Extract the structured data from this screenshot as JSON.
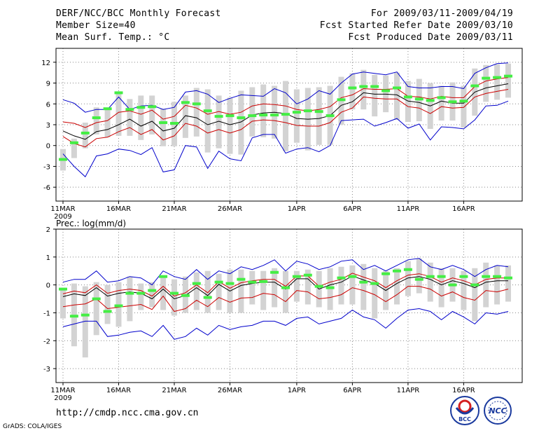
{
  "header": {
    "title": "DERF/NCC/BCC Monthly Forecast",
    "member_size": "Member Size=40",
    "variable1": "Mean Surf. Temp.: °C",
    "period": "For 2009/03/11-2009/04/19",
    "refer_date": "Fcst Started Refer Date 2009/03/10",
    "produced_date": "Fcst Produced Date 2009/03/11"
  },
  "panel2_label": "Prec.: log(mm/d)",
  "footer": {
    "url": "http://cmdp.ncc.cma.gov.cn",
    "credit": "GrADS: COLA/IGES"
  },
  "logos": {
    "bcc": "BCC",
    "ncc": "NCC"
  },
  "colors": {
    "mean": "#000000",
    "inner": "#cc0000",
    "outer": "#0000cc",
    "obs": "#44ee44",
    "spread": "#d3d3d3"
  },
  "chart_data": [
    {
      "type": "line",
      "title": "Mean Surf. Temp.: °C",
      "x_ticks": [
        "11MAR",
        "16MAR",
        "21MAR",
        "26MAR",
        "1APR",
        "6APR",
        "11APR",
        "16APR"
      ],
      "x_tick_index": [
        0,
        5,
        10,
        15,
        21,
        26,
        31,
        36
      ],
      "year_label": "2009",
      "ylim": [
        -8,
        14
      ],
      "y_ticks": [
        12,
        9,
        6,
        3,
        0,
        -3,
        -6
      ],
      "series": [
        {
          "name": "mean",
          "values": [
            2.1,
            1.4,
            0.9,
            2.0,
            2.3,
            3.0,
            3.8,
            2.8,
            3.5,
            2.1,
            2.5,
            4.3,
            4.0,
            3.0,
            3.5,
            3.0,
            3.4,
            4.4,
            4.7,
            4.8,
            4.6,
            3.9,
            3.8,
            3.9,
            4.3,
            5.8,
            6.3,
            7.6,
            7.4,
            7.4,
            7.3,
            6.4,
            6.2,
            5.7,
            6.4,
            6.1,
            6.1,
            7.7,
            8.3,
            8.6,
            8.9
          ]
        },
        {
          "name": "upper_red",
          "values": [
            3.4,
            3.2,
            2.6,
            3.3,
            3.6,
            4.8,
            5.0,
            4.5,
            5.1,
            3.8,
            4.2,
            5.8,
            5.4,
            4.5,
            4.9,
            4.5,
            4.8,
            5.7,
            6.0,
            5.9,
            5.7,
            5.2,
            5.0,
            5.2,
            5.6,
            6.9,
            7.3,
            8.2,
            8.1,
            8.1,
            8.2,
            7.1,
            7.0,
            6.7,
            7.1,
            6.9,
            6.9,
            8.5,
            9.3,
            9.6,
            9.8
          ]
        },
        {
          "name": "lower_red",
          "values": [
            1.3,
            0.3,
            -0.2,
            1.0,
            1.2,
            2.0,
            2.6,
            1.6,
            2.3,
            0.8,
            1.4,
            3.2,
            2.8,
            1.8,
            2.3,
            1.8,
            2.3,
            3.5,
            3.7,
            3.6,
            3.3,
            2.9,
            2.8,
            2.8,
            3.3,
            4.8,
            5.4,
            7.0,
            6.8,
            6.7,
            6.7,
            5.6,
            5.4,
            4.6,
            5.6,
            5.4,
            5.5,
            7.0,
            7.5,
            7.8,
            8.1
          ]
        },
        {
          "name": "upper_blue",
          "values": [
            6.6,
            6.1,
            4.8,
            5.2,
            5.2,
            7.0,
            5.2,
            5.7,
            5.8,
            5.2,
            5.5,
            7.7,
            7.9,
            7.4,
            6.2,
            6.8,
            7.3,
            7.2,
            7.1,
            8.2,
            7.6,
            6.0,
            6.7,
            7.9,
            7.4,
            9.0,
            10.3,
            10.6,
            10.4,
            10.2,
            10.6,
            8.5,
            8.3,
            8.3,
            8.5,
            8.5,
            8.2,
            10.4,
            11.2,
            11.8,
            11.9
          ]
        },
        {
          "name": "lower_blue",
          "values": [
            -1.2,
            -3.0,
            -4.5,
            -1.5,
            -1.2,
            -0.5,
            -0.7,
            -1.3,
            -0.3,
            -3.8,
            -3.5,
            0.0,
            -0.2,
            -3.3,
            -0.8,
            -1.9,
            -2.2,
            1.1,
            1.6,
            1.6,
            -1.1,
            -0.5,
            -0.3,
            -0.9,
            0.0,
            3.6,
            3.7,
            3.8,
            2.8,
            3.3,
            3.9,
            2.5,
            3.1,
            0.8,
            2.7,
            2.6,
            2.4,
            3.7,
            5.7,
            5.8,
            6.4
          ]
        },
        {
          "name": "obs",
          "values": [
            -2.0,
            0.4,
            1.8,
            4.0,
            5.3,
            7.6,
            5.2,
            5.5,
            5.6,
            3.3,
            3.2,
            6.2,
            6.0,
            5.0,
            4.2,
            4.3,
            4.0,
            4.3,
            4.4,
            4.4,
            4.5,
            4.8,
            5.0,
            4.9,
            4.3,
            6.6,
            8.3,
            8.5,
            8.5,
            7.9,
            8.3,
            7.0,
            6.7,
            6.5,
            6.9,
            6.3,
            6.4,
            8.6,
            9.7,
            9.8,
            10.0
          ]
        },
        {
          "name": "spread_high",
          "values": [
            -0.5,
            1.0,
            3.3,
            5.5,
            5.3,
            7.8,
            6.7,
            7.2,
            7.2,
            5.3,
            6.3,
            7.2,
            8.3,
            8.1,
            7.2,
            6.9,
            7.9,
            8.4,
            8.8,
            8.6,
            9.3,
            8.1,
            8.3,
            8.4,
            8.6,
            9.9,
            10.4,
            10.9,
            10.2,
            10.1,
            10.5,
            9.3,
            9.6,
            9.0,
            8.6,
            9.1,
            8.6,
            11.1,
            11.6,
            11.7,
            11.8
          ]
        },
        {
          "name": "spread_low",
          "values": [
            -3.6,
            -1.8,
            -0.4,
            1.6,
            1.2,
            1.4,
            1.4,
            0.8,
            1.6,
            -0.1,
            -0.1,
            1.1,
            1.3,
            -1.0,
            -0.4,
            -1.2,
            -1.3,
            1.3,
            1.2,
            1.0,
            -0.8,
            0.4,
            -0.7,
            0.1,
            0.1,
            3.0,
            5.2,
            5.2,
            4.2,
            4.8,
            3.7,
            3.4,
            3.5,
            2.4,
            3.6,
            3.6,
            2.6,
            4.3,
            6.3,
            6.6,
            6.9
          ]
        }
      ]
    },
    {
      "type": "line",
      "title": "Prec.: log(mm/d)",
      "x_ticks": [
        "11MAR",
        "16MAR",
        "21MAR",
        "26MAR",
        "1APR",
        "6APR",
        "11APR",
        "16APR"
      ],
      "x_tick_index": [
        0,
        5,
        10,
        15,
        21,
        26,
        31,
        36
      ],
      "year_label": "2009",
      "ylim": [
        -3.5,
        2
      ],
      "y_ticks": [
        2,
        1,
        0,
        -1,
        -2,
        -3
      ],
      "series": [
        {
          "name": "mean",
          "values": [
            -0.42,
            -0.32,
            -0.38,
            -0.1,
            -0.4,
            -0.3,
            -0.25,
            -0.3,
            -0.5,
            -0.15,
            -0.5,
            -0.38,
            -0.1,
            -0.38,
            0.02,
            -0.22,
            -0.02,
            0.05,
            0.1,
            0.1,
            -0.15,
            0.22,
            0.22,
            -0.15,
            0.0,
            0.1,
            0.32,
            0.18,
            0.05,
            -0.2,
            0.05,
            0.25,
            0.3,
            0.2,
            0.0,
            0.15,
            0.05,
            -0.1,
            0.1,
            0.15,
            0.15
          ]
        },
        {
          "name": "upper_red",
          "values": [
            -0.32,
            -0.22,
            -0.28,
            0.0,
            -0.3,
            -0.2,
            -0.15,
            -0.2,
            -0.4,
            -0.05,
            -0.4,
            -0.28,
            0.0,
            -0.28,
            0.12,
            -0.12,
            0.08,
            0.15,
            0.2,
            0.2,
            -0.05,
            0.32,
            0.32,
            -0.05,
            0.1,
            0.2,
            0.42,
            0.28,
            0.15,
            -0.1,
            0.15,
            0.35,
            0.4,
            0.3,
            0.1,
            0.25,
            0.15,
            0.0,
            0.2,
            0.25,
            0.25
          ]
        },
        {
          "name": "lower_red",
          "values": [
            -0.78,
            -0.72,
            -0.68,
            -0.5,
            -0.85,
            -0.8,
            -0.75,
            -0.7,
            -0.88,
            -0.4,
            -0.95,
            -0.85,
            -0.55,
            -0.78,
            -0.45,
            -0.62,
            -0.47,
            -0.45,
            -0.3,
            -0.35,
            -0.6,
            -0.2,
            -0.25,
            -0.5,
            -0.45,
            -0.35,
            -0.1,
            -0.2,
            -0.35,
            -0.6,
            -0.35,
            -0.05,
            -0.05,
            -0.15,
            -0.4,
            -0.25,
            -0.45,
            -0.55,
            -0.2,
            -0.25,
            -0.15
          ]
        },
        {
          "name": "upper_blue",
          "values": [
            0.1,
            0.2,
            0.2,
            0.5,
            0.1,
            0.15,
            0.3,
            0.25,
            0.0,
            0.5,
            0.3,
            0.2,
            0.55,
            0.2,
            0.5,
            0.4,
            0.65,
            0.55,
            0.7,
            0.9,
            0.5,
            0.85,
            0.75,
            0.55,
            0.65,
            0.85,
            0.9,
            0.55,
            0.7,
            0.5,
            0.7,
            0.9,
            0.95,
            0.65,
            0.55,
            0.7,
            0.55,
            0.3,
            0.55,
            0.7,
            0.65
          ]
        },
        {
          "name": "lower_blue",
          "values": [
            -1.5,
            -1.4,
            -1.3,
            -1.3,
            -1.85,
            -1.8,
            -1.7,
            -1.65,
            -1.85,
            -1.45,
            -1.95,
            -1.85,
            -1.55,
            -1.8,
            -1.45,
            -1.6,
            -1.5,
            -1.45,
            -1.3,
            -1.3,
            -1.45,
            -1.2,
            -1.15,
            -1.4,
            -1.3,
            -1.2,
            -0.9,
            -1.15,
            -1.25,
            -1.55,
            -1.2,
            -0.9,
            -0.85,
            -0.95,
            -1.25,
            -0.95,
            -1.15,
            -1.4,
            -1.0,
            -1.05,
            -0.95
          ]
        },
        {
          "name": "obs",
          "values": [
            -0.15,
            -1.12,
            -1.08,
            -0.5,
            -0.95,
            -0.75,
            -0.3,
            -0.3,
            -0.2,
            0.3,
            -0.3,
            -0.38,
            0.05,
            -0.45,
            0.1,
            0.05,
            0.2,
            0.1,
            0.12,
            0.45,
            -0.1,
            0.3,
            0.35,
            -0.05,
            -0.1,
            0.25,
            0.3,
            0.1,
            0.05,
            0.4,
            0.5,
            0.55,
            0.2,
            0.3,
            0.3,
            0.0,
            0.3,
            0.0,
            0.3,
            0.3,
            0.25
          ]
        },
        {
          "name": "spread_high",
          "values": [
            -0.1,
            0.05,
            -0.05,
            0.1,
            0.0,
            0.1,
            0.3,
            0.05,
            0.1,
            0.3,
            0.2,
            0.3,
            0.45,
            0.5,
            0.4,
            0.55,
            0.55,
            0.5,
            0.5,
            0.6,
            0.5,
            0.5,
            0.55,
            0.5,
            0.6,
            0.65,
            0.7,
            0.75,
            0.6,
            0.5,
            0.6,
            0.85,
            0.95,
            0.8,
            0.6,
            0.6,
            0.5,
            0.6,
            0.8,
            0.7,
            0.7
          ]
        },
        {
          "name": "spread_low",
          "values": [
            -1.2,
            -2.2,
            -2.6,
            -1.8,
            -1.4,
            -1.5,
            -1.3,
            -0.9,
            -0.8,
            -0.9,
            -1.1,
            -1.0,
            -0.9,
            -1.0,
            -0.9,
            -1.0,
            -1.0,
            -0.7,
            -0.9,
            -0.8,
            -1.0,
            -0.6,
            -0.7,
            -0.8,
            -0.9,
            -0.7,
            -0.7,
            -0.9,
            -1.2,
            -0.9,
            -0.7,
            -0.4,
            -0.3,
            -0.6,
            -0.8,
            -0.6,
            -0.9,
            -1.3,
            -0.8,
            -0.7,
            -0.6
          ]
        }
      ]
    }
  ]
}
